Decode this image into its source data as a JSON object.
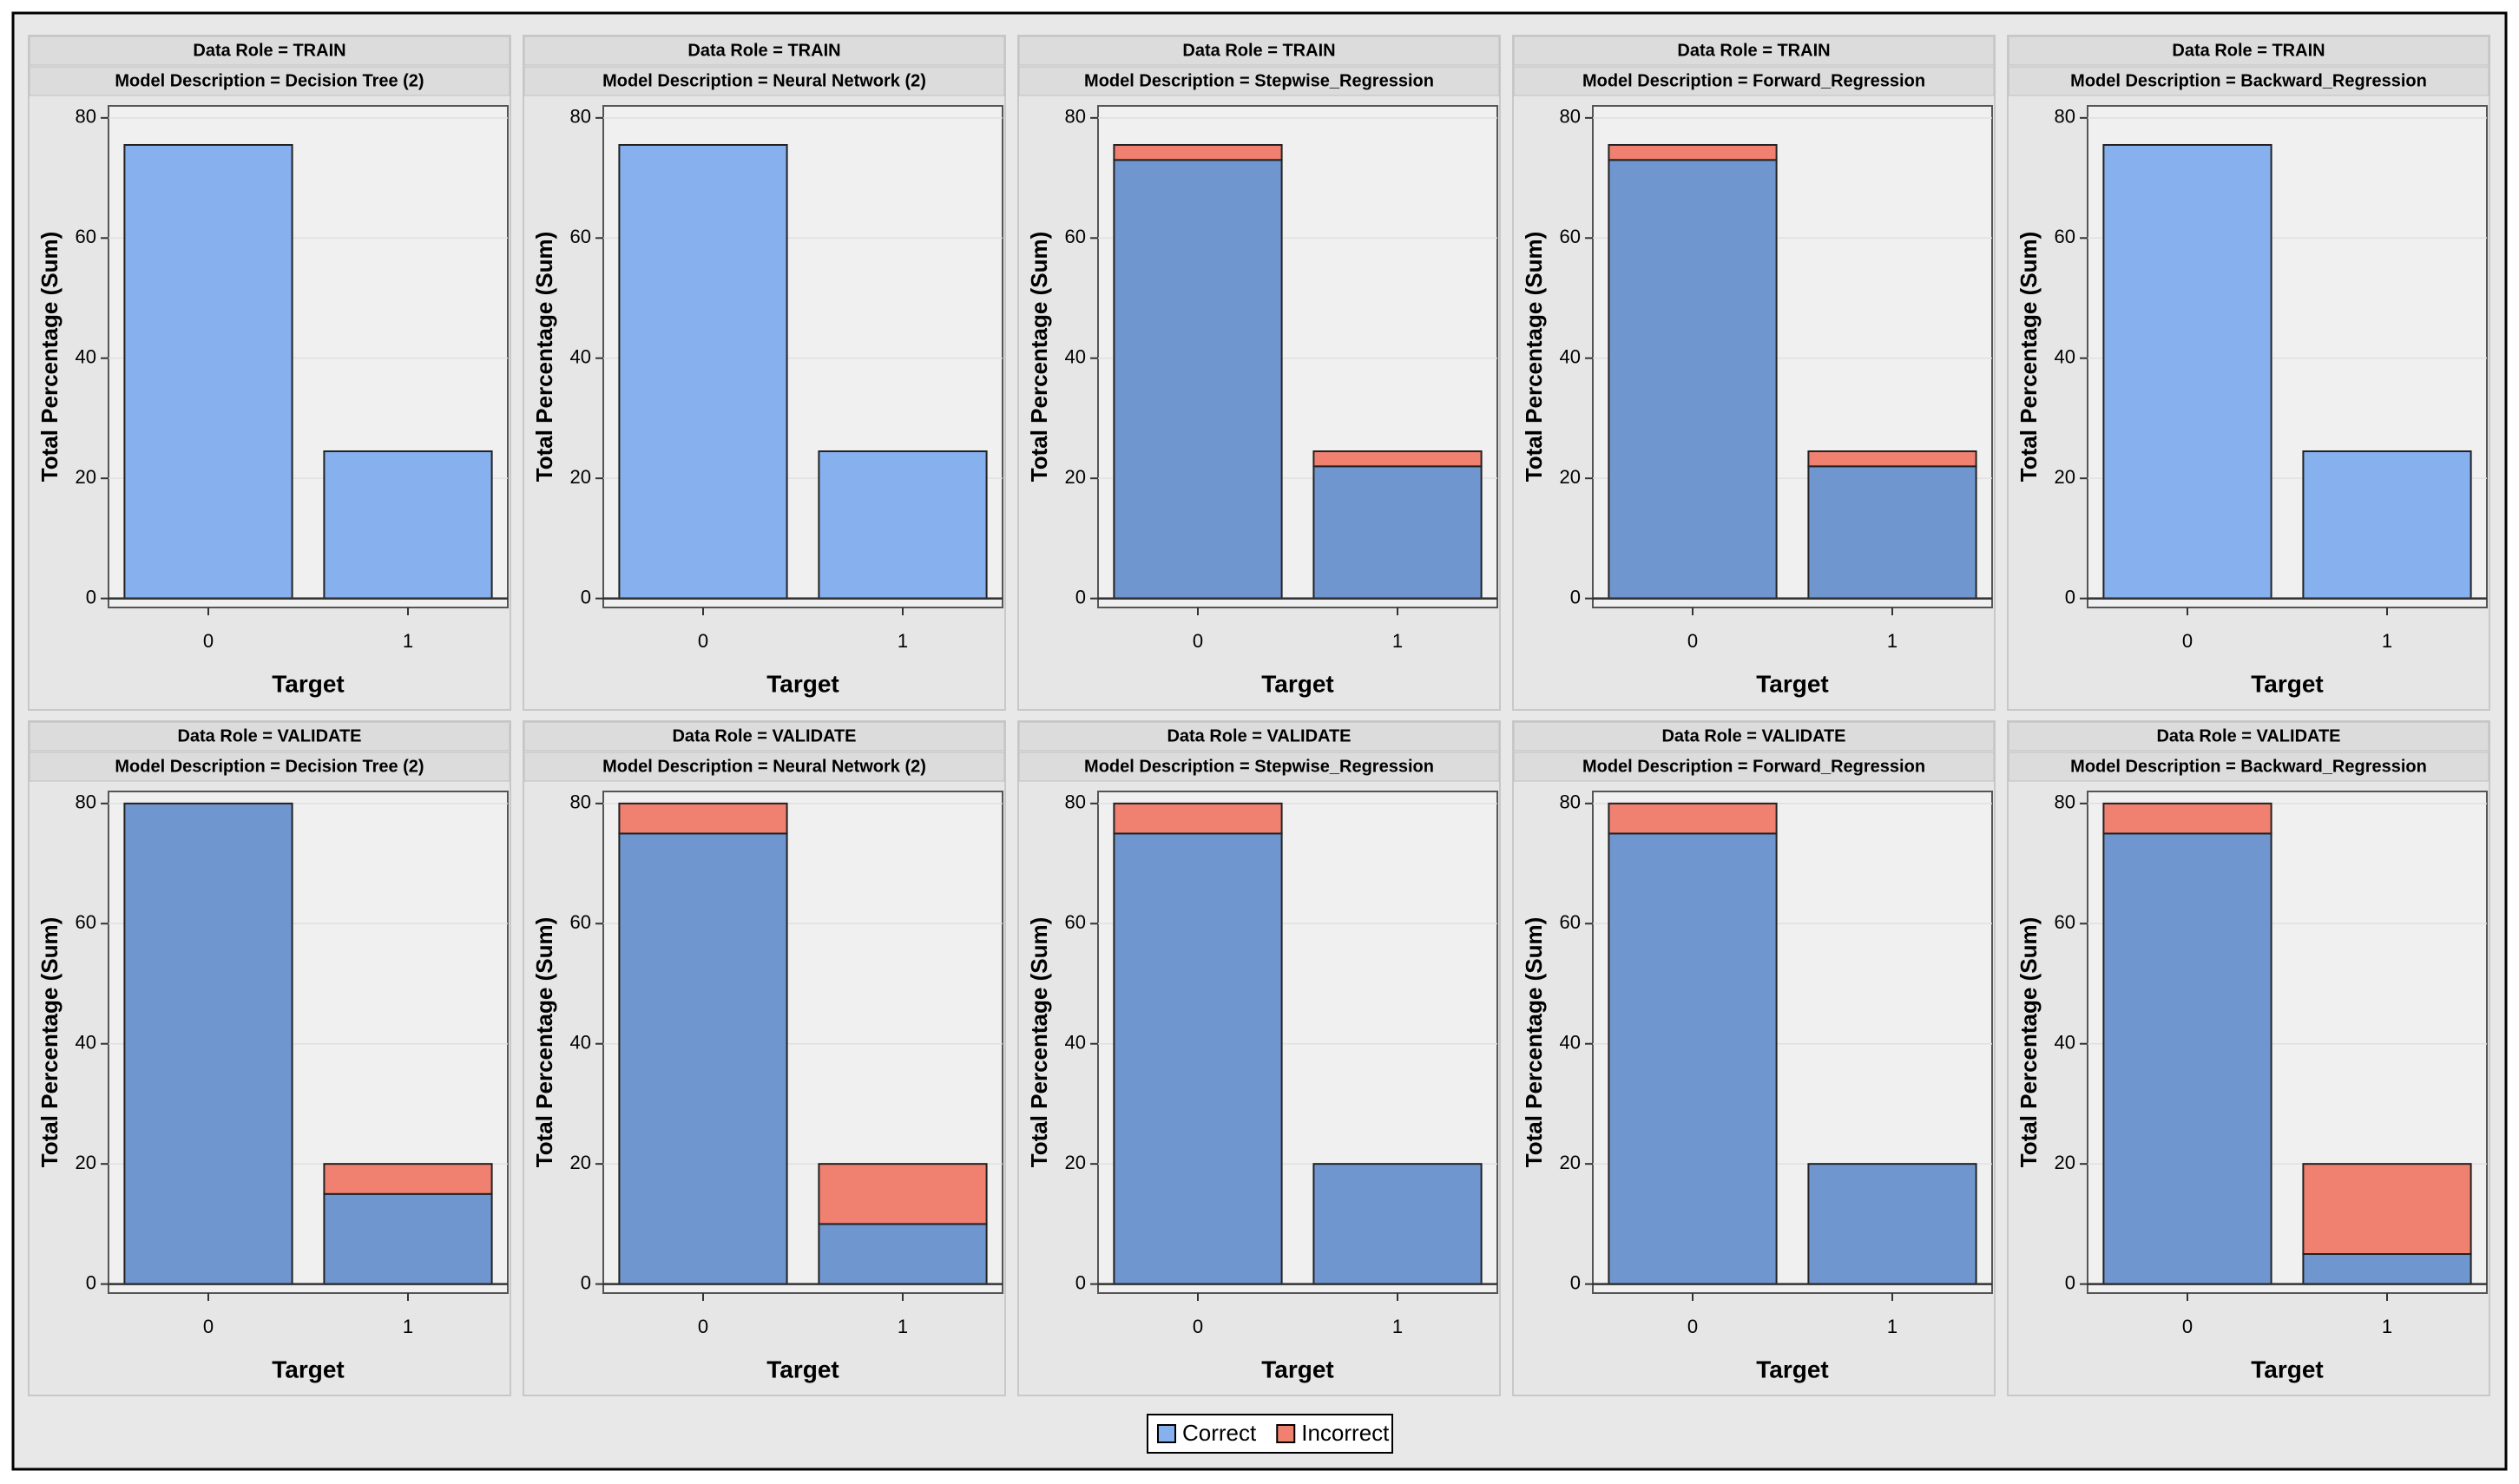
{
  "chart_data": [
    {
      "type": "bar",
      "stacked": true,
      "title": "Data Role = TRAIN",
      "subtitle": "Model Description = Decision Tree (2)",
      "y_label": "Total Percentage (Sum)",
      "x_label": "Target",
      "categories": [
        "0",
        "1"
      ],
      "series": [
        {
          "name": "Correct",
          "color": "#86b0ee",
          "values": [
            75.5,
            24.5
          ]
        },
        {
          "name": "Incorrect",
          "color": "#f08070",
          "values": [
            0,
            0
          ]
        }
      ],
      "ylim": [
        -1.5,
        82
      ],
      "yticks": [
        0,
        20,
        40,
        60,
        80
      ],
      "grid": true
    },
    {
      "type": "bar",
      "stacked": true,
      "title": "Data Role = TRAIN",
      "subtitle": "Model Description = Neural Network (2)",
      "y_label": "Total Percentage (Sum)",
      "x_label": "Target",
      "categories": [
        "0",
        "1"
      ],
      "series": [
        {
          "name": "Correct",
          "color": "#86b0ee",
          "values": [
            75.5,
            24.5
          ]
        },
        {
          "name": "Incorrect",
          "color": "#f08070",
          "values": [
            0,
            0
          ]
        }
      ],
      "ylim": [
        -1.5,
        82
      ],
      "yticks": [
        0,
        20,
        40,
        60,
        80
      ],
      "grid": true
    },
    {
      "type": "bar",
      "stacked": true,
      "title": "Data Role = TRAIN",
      "subtitle": "Model Description = Stepwise_Regression",
      "y_label": "Total Percentage (Sum)",
      "x_label": "Target",
      "categories": [
        "0",
        "1"
      ],
      "series": [
        {
          "name": "Correct",
          "color": "#7096d0",
          "values": [
            73,
            22
          ]
        },
        {
          "name": "Incorrect",
          "color": "#f08070",
          "values": [
            2.5,
            2.5
          ]
        }
      ],
      "ylim": [
        -1.5,
        82
      ],
      "yticks": [
        0,
        20,
        40,
        60,
        80
      ],
      "grid": true
    },
    {
      "type": "bar",
      "stacked": true,
      "title": "Data Role = TRAIN",
      "subtitle": "Model Description = Forward_Regression",
      "y_label": "Total Percentage (Sum)",
      "x_label": "Target",
      "categories": [
        "0",
        "1"
      ],
      "series": [
        {
          "name": "Correct",
          "color": "#7096d0",
          "values": [
            73,
            22
          ]
        },
        {
          "name": "Incorrect",
          "color": "#f08070",
          "values": [
            2.5,
            2.5
          ]
        }
      ],
      "ylim": [
        -1.5,
        82
      ],
      "yticks": [
        0,
        20,
        40,
        60,
        80
      ],
      "grid": true
    },
    {
      "type": "bar",
      "stacked": true,
      "title": "Data Role = TRAIN",
      "subtitle": "Model Description = Backward_Regression",
      "y_label": "Total Percentage (Sum)",
      "x_label": "Target",
      "categories": [
        "0",
        "1"
      ],
      "series": [
        {
          "name": "Correct",
          "color": "#86b0ee",
          "values": [
            75.5,
            24.5
          ]
        },
        {
          "name": "Incorrect",
          "color": "#f08070",
          "values": [
            0,
            0
          ]
        }
      ],
      "ylim": [
        -1.5,
        82
      ],
      "yticks": [
        0,
        20,
        40,
        60,
        80
      ],
      "grid": true
    },
    {
      "type": "bar",
      "stacked": true,
      "title": "Data Role = VALIDATE",
      "subtitle": "Model Description = Decision Tree (2)",
      "y_label": "Total Percentage (Sum)",
      "x_label": "Target",
      "categories": [
        "0",
        "1"
      ],
      "series": [
        {
          "name": "Correct",
          "color": "#7096d0",
          "values": [
            80,
            15
          ]
        },
        {
          "name": "Incorrect",
          "color": "#f08070",
          "values": [
            0,
            5
          ]
        }
      ],
      "ylim": [
        -1.5,
        82
      ],
      "yticks": [
        0,
        20,
        40,
        60,
        80
      ],
      "grid": true
    },
    {
      "type": "bar",
      "stacked": true,
      "title": "Data Role = VALIDATE",
      "subtitle": "Model Description = Neural Network (2)",
      "y_label": "Total Percentage (Sum)",
      "x_label": "Target",
      "categories": [
        "0",
        "1"
      ],
      "series": [
        {
          "name": "Correct",
          "color": "#7096d0",
          "values": [
            75,
            10
          ]
        },
        {
          "name": "Incorrect",
          "color": "#f08070",
          "values": [
            5,
            10
          ]
        }
      ],
      "ylim": [
        -1.5,
        82
      ],
      "yticks": [
        0,
        20,
        40,
        60,
        80
      ],
      "grid": true
    },
    {
      "type": "bar",
      "stacked": true,
      "title": "Data Role = VALIDATE",
      "subtitle": "Model Description = Stepwise_Regression",
      "y_label": "Total Percentage (Sum)",
      "x_label": "Target",
      "categories": [
        "0",
        "1"
      ],
      "series": [
        {
          "name": "Correct",
          "color": "#7096d0",
          "values": [
            75,
            20
          ]
        },
        {
          "name": "Incorrect",
          "color": "#f08070",
          "values": [
            5,
            0
          ]
        }
      ],
      "ylim": [
        -1.5,
        82
      ],
      "yticks": [
        0,
        20,
        40,
        60,
        80
      ],
      "grid": true
    },
    {
      "type": "bar",
      "stacked": true,
      "title": "Data Role = VALIDATE",
      "subtitle": "Model Description = Forward_Regression",
      "y_label": "Total Percentage (Sum)",
      "x_label": "Target",
      "categories": [
        "0",
        "1"
      ],
      "series": [
        {
          "name": "Correct",
          "color": "#7096d0",
          "values": [
            75,
            20
          ]
        },
        {
          "name": "Incorrect",
          "color": "#f08070",
          "values": [
            5,
            0
          ]
        }
      ],
      "ylim": [
        -1.5,
        82
      ],
      "yticks": [
        0,
        20,
        40,
        60,
        80
      ],
      "grid": true
    },
    {
      "type": "bar",
      "stacked": true,
      "title": "Data Role = VALIDATE",
      "subtitle": "Model Description = Backward_Regression",
      "y_label": "Total Percentage (Sum)",
      "x_label": "Target",
      "categories": [
        "0",
        "1"
      ],
      "series": [
        {
          "name": "Correct",
          "color": "#7096d0",
          "values": [
            75,
            5
          ]
        },
        {
          "name": "Incorrect",
          "color": "#f08070",
          "values": [
            5,
            15
          ]
        }
      ],
      "ylim": [
        -1.5,
        82
      ],
      "yticks": [
        0,
        20,
        40,
        60,
        80
      ],
      "grid": true
    }
  ]
}
